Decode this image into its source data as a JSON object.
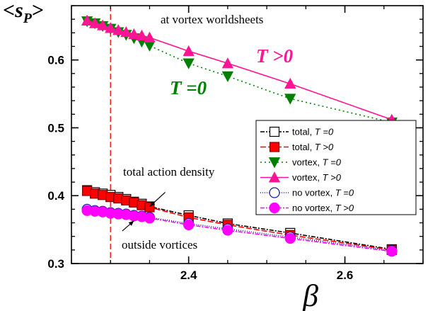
{
  "chart_data": {
    "type": "line",
    "ylabel_parts": {
      "open": "<",
      "var": "s",
      "sub": "P",
      "close": ">"
    },
    "xlabel": "β",
    "xlim": [
      2.25,
      2.7
    ],
    "ylim": [
      0.3,
      0.68
    ],
    "xticks": [
      2.4,
      2.6
    ],
    "xtick_labels": [
      "2.4",
      "2.6"
    ],
    "yticks": [
      0.3,
      0.4,
      0.5,
      0.6
    ],
    "ytick_labels": [
      "0.3",
      "0.4",
      "0.5",
      "0.6"
    ],
    "x_minor_step": 0.05,
    "y_minor_step": 0.02,
    "vline_x": 2.3,
    "legend_position": "right",
    "annotations": {
      "top": "at vortex worldsheets",
      "t_pos_big": "T >0",
      "t_zero_big": "T =0",
      "total_action": "total action density",
      "outside": "outside vortices"
    },
    "arrows": [
      {
        "from": [
          2.37,
          0.405
        ],
        "to": [
          2.35,
          0.384
        ]
      },
      {
        "from": [
          2.315,
          0.348
        ],
        "to": [
          2.33,
          0.363
        ]
      }
    ],
    "series": [
      {
        "name": "total, ",
        "name_T": "T =0",
        "color": "#000000",
        "marker": "square-open",
        "dash": "6,2,2,2",
        "x": [
          2.27,
          2.28,
          2.29,
          2.3,
          2.31,
          2.32,
          2.33,
          2.34,
          2.35,
          2.4,
          2.45,
          2.53,
          2.66
        ],
        "y": [
          0.408,
          0.405,
          0.403,
          0.401,
          0.398,
          0.395,
          0.391,
          0.388,
          0.384,
          0.371,
          0.359,
          0.345,
          0.321
        ]
      },
      {
        "name": "total, ",
        "name_T": "T >0",
        "color": "#ff0000",
        "marker": "square-filled",
        "dash": "8,3",
        "x": [
          2.27,
          2.28,
          2.29,
          2.3,
          2.31,
          2.32,
          2.33,
          2.34,
          2.35,
          2.4,
          2.45,
          2.53,
          2.66
        ],
        "y": [
          0.407,
          0.403,
          0.401,
          0.398,
          0.396,
          0.393,
          0.39,
          0.386,
          0.383,
          0.368,
          0.357,
          0.342,
          0.32
        ]
      },
      {
        "name": "vortex, ",
        "name_T": "T =0",
        "color": "#008000",
        "marker": "tri-down",
        "dash": "2,4",
        "x": [
          2.27,
          2.28,
          2.29,
          2.3,
          2.31,
          2.32,
          2.33,
          2.34,
          2.35,
          2.4,
          2.45,
          2.53,
          2.66
        ],
        "y": [
          0.657,
          0.654,
          0.65,
          0.646,
          0.641,
          0.637,
          0.632,
          0.627,
          0.621,
          0.595,
          0.576,
          0.543,
          0.508
        ]
      },
      {
        "name": "vortex, ",
        "name_T": "T >0",
        "color": "#ff1493",
        "marker": "tri-up",
        "dash": "",
        "x": [
          2.27,
          2.28,
          2.29,
          2.3,
          2.31,
          2.32,
          2.33,
          2.34,
          2.35,
          2.4,
          2.45,
          2.53,
          2.66
        ],
        "y": [
          0.658,
          0.654,
          0.651,
          0.647,
          0.644,
          0.641,
          0.638,
          0.636,
          0.633,
          0.613,
          0.595,
          0.565,
          0.512
        ]
      },
      {
        "name": "no vortex, ",
        "name_T": "T =0",
        "color": "#1a1aa0",
        "marker": "circle-open",
        "dash": "1,2",
        "x": [
          2.27,
          2.28,
          2.29,
          2.3,
          2.31,
          2.32,
          2.33,
          2.34,
          2.35,
          2.4,
          2.45,
          2.53,
          2.66
        ],
        "y": [
          0.38,
          0.378,
          0.377,
          0.375,
          0.374,
          0.373,
          0.371,
          0.37,
          0.368,
          0.359,
          0.351,
          0.339,
          0.319
        ]
      },
      {
        "name": "no vortex, ",
        "name_T": "T >0",
        "color": "#ff00ff",
        "marker": "circle-filled",
        "dash": "6,2,2,2",
        "x": [
          2.27,
          2.28,
          2.29,
          2.3,
          2.31,
          2.32,
          2.33,
          2.34,
          2.35,
          2.4,
          2.45,
          2.53,
          2.66
        ],
        "y": [
          0.378,
          0.377,
          0.376,
          0.374,
          0.373,
          0.372,
          0.37,
          0.369,
          0.367,
          0.357,
          0.349,
          0.337,
          0.318
        ]
      }
    ],
    "colors": {
      "axis": "#000000",
      "vline": "#ff0000",
      "t_pos_text": "#ff1493",
      "t_zero_text": "#008000"
    }
  }
}
